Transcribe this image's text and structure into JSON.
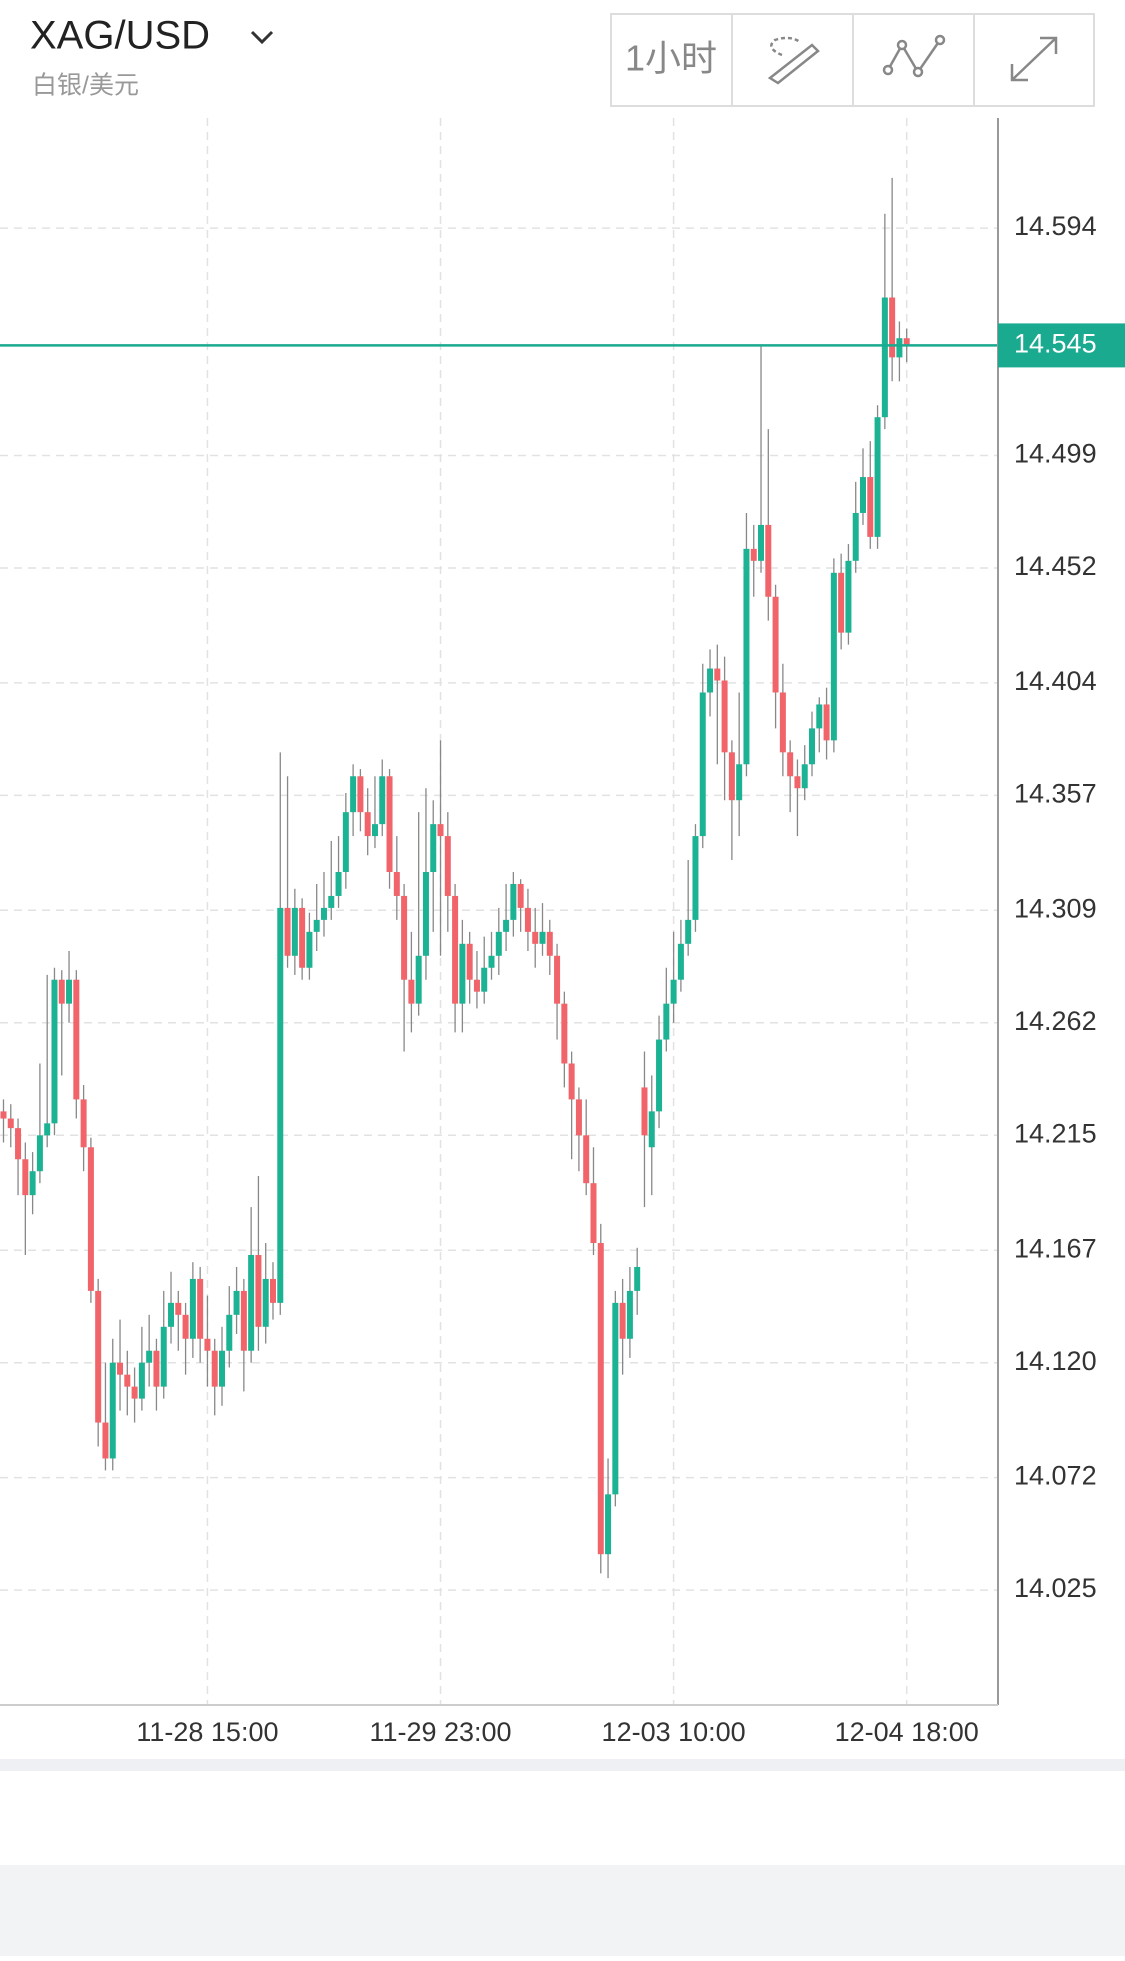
{
  "header": {
    "symbol": "XAG/USD",
    "subtitle": "白银/美元",
    "interval": "1小时"
  },
  "chart_data": {
    "type": "candlestick",
    "categories": [
      null,
      null,
      null,
      null,
      null,
      null,
      null,
      null,
      null,
      null,
      null,
      null,
      null,
      null,
      null,
      null,
      null,
      null,
      null,
      null,
      null,
      null,
      null,
      null,
      null,
      null,
      null,
      null,
      "11-28 15:00",
      null,
      null,
      null,
      null,
      null,
      null,
      null,
      null,
      null,
      null,
      null,
      null,
      null,
      null,
      null,
      null,
      null,
      null,
      null,
      null,
      null,
      null,
      null,
      null,
      null,
      null,
      null,
      null,
      null,
      null,
      null,
      "11-29 23:00",
      null,
      null,
      null,
      null,
      null,
      null,
      null,
      null,
      null,
      null,
      null,
      null,
      null,
      null,
      null,
      null,
      null,
      null,
      null,
      null,
      null,
      null,
      null,
      null,
      null,
      null,
      null,
      null,
      null,
      null,
      null,
      "12-03 10:00",
      null,
      null,
      null,
      null,
      null,
      null,
      null,
      null,
      null,
      null,
      null,
      null,
      null,
      null,
      null,
      null,
      null,
      null,
      null,
      null,
      null,
      null,
      null,
      null,
      null,
      null,
      null,
      null,
      null,
      null,
      null,
      "12-04 18:00"
    ],
    "open": [
      14.225,
      14.222,
      14.218,
      14.205,
      14.19,
      14.2,
      14.215,
      14.22,
      14.28,
      14.27,
      14.28,
      14.23,
      14.21,
      14.15,
      14.095,
      14.08,
      14.12,
      14.115,
      14.11,
      14.105,
      14.12,
      14.125,
      14.11,
      14.135,
      14.145,
      14.14,
      14.13,
      14.155,
      14.13,
      14.125,
      14.11,
      14.125,
      14.14,
      14.15,
      14.125,
      14.165,
      14.135,
      14.155,
      14.145,
      14.31,
      14.29,
      14.31,
      14.285,
      14.3,
      14.305,
      14.31,
      14.315,
      14.325,
      14.35,
      14.365,
      14.35,
      14.34,
      14.345,
      14.365,
      14.325,
      14.315,
      14.28,
      14.27,
      14.29,
      14.325,
      14.345,
      14.34,
      14.315,
      14.27,
      14.295,
      14.28,
      14.275,
      14.285,
      14.29,
      14.3,
      14.305,
      14.32,
      14.31,
      14.3,
      14.295,
      14.3,
      14.29,
      14.27,
      14.245,
      14.23,
      14.215,
      14.195,
      14.17,
      14.04,
      14.065,
      14.145,
      14.13,
      14.15,
      14.235,
      14.21,
      14.225,
      14.255,
      14.27,
      14.28,
      14.295,
      14.305,
      14.34,
      14.4,
      14.41,
      14.405,
      14.375,
      14.355,
      14.37,
      14.46,
      14.455,
      14.47,
      14.44,
      14.4,
      14.375,
      14.365,
      14.36,
      14.37,
      14.385,
      14.395,
      14.38,
      14.45,
      14.425,
      14.455,
      14.475,
      14.49,
      14.465,
      14.515,
      14.565,
      14.54,
      14.548
    ],
    "high": [
      14.23,
      14.228,
      14.222,
      14.212,
      14.208,
      14.245,
      14.282,
      14.285,
      14.284,
      14.292,
      14.284,
      14.236,
      14.214,
      14.155,
      14.12,
      14.13,
      14.138,
      14.125,
      14.118,
      14.135,
      14.14,
      14.13,
      14.15,
      14.158,
      14.15,
      14.145,
      14.162,
      14.16,
      14.148,
      14.13,
      14.135,
      14.152,
      14.16,
      14.155,
      14.185,
      14.198,
      14.17,
      14.162,
      14.375,
      14.365,
      14.318,
      14.314,
      14.308,
      14.32,
      14.325,
      14.338,
      14.34,
      14.358,
      14.37,
      14.368,
      14.36,
      14.365,
      14.372,
      14.368,
      14.34,
      14.32,
      14.3,
      14.35,
      14.36,
      14.355,
      14.38,
      14.35,
      14.32,
      14.305,
      14.3,
      14.292,
      14.298,
      14.3,
      14.31,
      14.32,
      14.325,
      14.322,
      14.318,
      14.31,
      14.312,
      14.305,
      14.295,
      14.275,
      14.25,
      14.235,
      14.23,
      14.21,
      14.178,
      14.08,
      14.15,
      14.155,
      14.16,
      14.168,
      14.25,
      14.24,
      14.265,
      14.285,
      14.3,
      14.305,
      14.33,
      14.345,
      14.412,
      14.418,
      14.42,
      14.415,
      14.38,
      14.4,
      14.475,
      14.47,
      14.545,
      14.51,
      14.445,
      14.412,
      14.38,
      14.372,
      14.378,
      14.392,
      14.398,
      14.402,
      14.456,
      14.458,
      14.462,
      14.488,
      14.502,
      14.505,
      14.52,
      14.6,
      14.615,
      14.555,
      14.552
    ],
    "low": [
      14.212,
      14.21,
      14.19,
      14.165,
      14.182,
      14.195,
      14.21,
      14.215,
      14.24,
      14.262,
      14.222,
      14.2,
      14.145,
      14.085,
      14.075,
      14.075,
      14.1,
      14.098,
      14.095,
      14.1,
      14.11,
      14.1,
      14.105,
      14.128,
      14.125,
      14.115,
      14.122,
      14.12,
      14.11,
      14.098,
      14.102,
      14.118,
      14.132,
      14.108,
      14.12,
      14.125,
      14.128,
      14.138,
      14.14,
      14.285,
      14.282,
      14.28,
      14.28,
      14.292,
      14.298,
      14.305,
      14.31,
      14.318,
      14.34,
      14.342,
      14.332,
      14.335,
      14.34,
      14.318,
      14.305,
      14.25,
      14.258,
      14.265,
      14.28,
      14.3,
      14.29,
      14.3,
      14.258,
      14.258,
      14.27,
      14.268,
      14.27,
      14.28,
      14.282,
      14.292,
      14.298,
      14.3,
      14.292,
      14.285,
      14.29,
      14.282,
      14.255,
      14.235,
      14.205,
      14.2,
      14.19,
      14.165,
      14.032,
      14.03,
      14.06,
      14.115,
      14.122,
      14.14,
      14.185,
      14.19,
      14.218,
      14.25,
      14.262,
      14.275,
      14.29,
      14.3,
      14.335,
      14.39,
      14.37,
      14.355,
      14.33,
      14.34,
      14.365,
      14.44,
      14.45,
      14.43,
      14.385,
      14.365,
      14.35,
      14.34,
      14.355,
      14.365,
      14.375,
      14.372,
      14.375,
      14.418,
      14.42,
      14.45,
      14.47,
      14.46,
      14.46,
      14.51,
      14.53,
      14.53,
      14.538
    ],
    "close": [
      14.222,
      14.218,
      14.205,
      14.19,
      14.2,
      14.215,
      14.22,
      14.28,
      14.27,
      14.28,
      14.23,
      14.21,
      14.15,
      14.095,
      14.08,
      14.12,
      14.115,
      14.11,
      14.105,
      14.12,
      14.125,
      14.11,
      14.135,
      14.145,
      14.14,
      14.13,
      14.155,
      14.13,
      14.125,
      14.11,
      14.125,
      14.14,
      14.15,
      14.125,
      14.165,
      14.135,
      14.155,
      14.145,
      14.31,
      14.29,
      14.31,
      14.285,
      14.3,
      14.305,
      14.31,
      14.315,
      14.325,
      14.35,
      14.365,
      14.35,
      14.34,
      14.345,
      14.365,
      14.325,
      14.315,
      14.28,
      14.27,
      14.29,
      14.325,
      14.345,
      14.34,
      14.315,
      14.27,
      14.295,
      14.28,
      14.275,
      14.285,
      14.29,
      14.3,
      14.305,
      14.32,
      14.31,
      14.3,
      14.295,
      14.3,
      14.29,
      14.27,
      14.245,
      14.23,
      14.215,
      14.195,
      14.17,
      14.04,
      14.065,
      14.145,
      14.13,
      14.15,
      14.16,
      14.215,
      14.225,
      14.255,
      14.27,
      14.28,
      14.295,
      14.305,
      14.34,
      14.4,
      14.41,
      14.405,
      14.375,
      14.355,
      14.37,
      14.46,
      14.455,
      14.47,
      14.44,
      14.4,
      14.375,
      14.365,
      14.36,
      14.37,
      14.385,
      14.395,
      14.38,
      14.45,
      14.425,
      14.455,
      14.475,
      14.49,
      14.465,
      14.515,
      14.565,
      14.54,
      14.548,
      14.545
    ],
    "up_color": "#1bb394",
    "down_color": "#f0646a",
    "last_price": 14.545,
    "last_price_color": "#1aaa8f",
    "ylim": [
      13.977,
      14.64
    ],
    "yticks": [
      14.025,
      14.072,
      {
        "value": 14.12,
        "label": "14.120"
      },
      14.167,
      14.215,
      14.262,
      14.309,
      14.357,
      14.404,
      14.452,
      14.499,
      14.594
    ],
    "grid": true
  }
}
